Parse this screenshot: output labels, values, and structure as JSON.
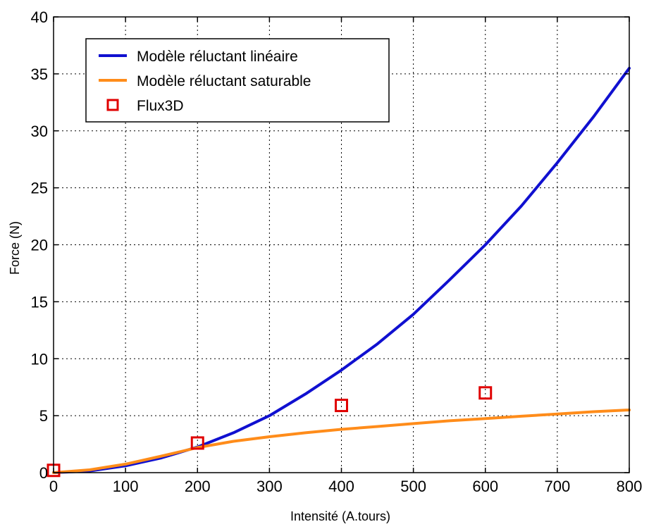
{
  "chart_data": {
    "type": "line",
    "xlabel": "Intensité (A.tours)",
    "ylabel": "Force (N)",
    "xlim": [
      0,
      800
    ],
    "ylim": [
      0,
      40
    ],
    "xticks": [
      "0",
      "100",
      "200",
      "300",
      "400",
      "500",
      "600",
      "700",
      "800"
    ],
    "yticks": [
      "0",
      "5",
      "10",
      "15",
      "20",
      "25",
      "30",
      "35",
      "40"
    ],
    "grid": true,
    "legend_position": "top-left",
    "series": [
      {
        "name": "Modèle réluctant linéaire",
        "kind": "line",
        "color": "#1010d0",
        "x": [
          0,
          50,
          100,
          150,
          200,
          250,
          300,
          350,
          400,
          450,
          500,
          550,
          600,
          650,
          700,
          750,
          800
        ],
        "y": [
          0,
          0.15,
          0.6,
          1.3,
          2.25,
          3.5,
          5.0,
          6.9,
          9.0,
          11.3,
          13.9,
          16.9,
          20.0,
          23.4,
          27.2,
          31.2,
          35.5
        ]
      },
      {
        "name": "Modèle réluctant saturable",
        "kind": "line",
        "color": "#ff8c1a",
        "x": [
          0,
          50,
          100,
          150,
          200,
          250,
          300,
          350,
          400,
          450,
          500,
          550,
          600,
          650,
          700,
          750,
          800
        ],
        "y": [
          0,
          0.25,
          0.75,
          1.45,
          2.2,
          2.75,
          3.15,
          3.5,
          3.8,
          4.05,
          4.3,
          4.55,
          4.75,
          4.95,
          5.15,
          5.35,
          5.5
        ]
      },
      {
        "name": "Flux3D",
        "kind": "marker",
        "marker": "square",
        "color": "#e00000",
        "x": [
          0,
          200,
          400,
          600
        ],
        "y": [
          0.2,
          2.6,
          5.9,
          7.0
        ]
      }
    ]
  }
}
